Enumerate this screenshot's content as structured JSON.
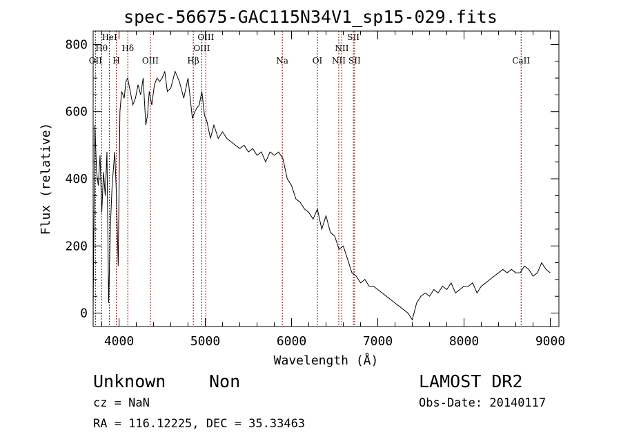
{
  "chart_data": {
    "type": "line",
    "title": "spec-56675-GAC115N34V1_sp15-029.fits",
    "xlabel": "Wavelength (Å)",
    "ylabel": "Flux (relative)",
    "xlim": [
      3700,
      9100
    ],
    "ylim": [
      -40,
      840
    ],
    "x_ticks": [
      4000,
      5000,
      6000,
      7000,
      8000,
      9000
    ],
    "y_ticks": [
      0,
      200,
      400,
      600,
      800
    ],
    "grid": false,
    "line_color": "#000000",
    "marker_color": "#8b0000",
    "spectrum": {
      "x": [
        3700,
        3720,
        3740,
        3760,
        3780,
        3800,
        3820,
        3840,
        3860,
        3880,
        3900,
        3920,
        3950,
        3970,
        3990,
        4010,
        4030,
        4060,
        4080,
        4100,
        4130,
        4160,
        4190,
        4220,
        4250,
        4280,
        4310,
        4330,
        4350,
        4380,
        4410,
        4440,
        4470,
        4500,
        4530,
        4560,
        4600,
        4650,
        4700,
        4750,
        4800,
        4850,
        4880,
        4900,
        4930,
        4960,
        4990,
        5020,
        5060,
        5100,
        5150,
        5200,
        5250,
        5300,
        5350,
        5400,
        5450,
        5500,
        5550,
        5600,
        5650,
        5700,
        5750,
        5800,
        5850,
        5900,
        5950,
        6000,
        6050,
        6100,
        6150,
        6200,
        6250,
        6300,
        6350,
        6400,
        6450,
        6500,
        6550,
        6600,
        6650,
        6700,
        6750,
        6800,
        6850,
        6900,
        6950,
        7000,
        7050,
        7100,
        7150,
        7200,
        7250,
        7300,
        7350,
        7400,
        7450,
        7500,
        7550,
        7600,
        7650,
        7700,
        7750,
        7800,
        7850,
        7900,
        7950,
        8000,
        8050,
        8100,
        8150,
        8200,
        8250,
        8300,
        8350,
        8400,
        8450,
        8500,
        8550,
        8600,
        8650,
        8700,
        8750,
        8800,
        8850,
        8900,
        8950,
        9000
      ],
      "y": [
        10,
        560,
        420,
        380,
        470,
        300,
        420,
        350,
        480,
        30,
        260,
        380,
        480,
        350,
        140,
        600,
        660,
        640,
        690,
        700,
        660,
        620,
        640,
        680,
        650,
        700,
        560,
        590,
        660,
        620,
        680,
        700,
        690,
        700,
        720,
        660,
        670,
        720,
        690,
        640,
        700,
        580,
        600,
        610,
        620,
        660,
        590,
        570,
        520,
        560,
        520,
        540,
        520,
        510,
        500,
        490,
        500,
        480,
        490,
        470,
        480,
        450,
        480,
        470,
        480,
        460,
        400,
        380,
        340,
        330,
        310,
        300,
        280,
        310,
        250,
        290,
        240,
        230,
        190,
        200,
        160,
        120,
        110,
        90,
        100,
        80,
        80,
        70,
        60,
        50,
        40,
        30,
        20,
        10,
        0,
        -20,
        30,
        50,
        60,
        50,
        70,
        60,
        80,
        70,
        90,
        60,
        70,
        80,
        80,
        90,
        60,
        80,
        90,
        100,
        110,
        120,
        130,
        120,
        130,
        120,
        120,
        140,
        130,
        110,
        120,
        150,
        130,
        120
      ]
    },
    "spectral_lines": [
      {
        "label": "OII",
        "wavelength": 3727
      },
      {
        "label": "Hθ",
        "wavelength": 3798
      },
      {
        "label": "HeI",
        "wavelength": 3889
      },
      {
        "label": "H",
        "wavelength": 3969
      },
      {
        "label": "Hδ",
        "wavelength": 4102
      },
      {
        "label": "OIII",
        "wavelength": 4363
      },
      {
        "label": "Hβ",
        "wavelength": 4861
      },
      {
        "label": "OIII",
        "wavelength": 4959
      },
      {
        "label": "OIII",
        "wavelength": 5007
      },
      {
        "label": "Na",
        "wavelength": 5893
      },
      {
        "label": "OI",
        "wavelength": 6300
      },
      {
        "label": "NII",
        "wavelength": 6548
      },
      {
        "label": "NII",
        "wavelength": 6584
      },
      {
        "label": "SII",
        "wavelength": 6717
      },
      {
        "label": "SII",
        "wavelength": 6731
      },
      {
        "label": "CaII",
        "wavelength": 8662
      }
    ]
  },
  "info": {
    "class": "Unknown",
    "subclass": "Non",
    "survey": "LAMOST DR2",
    "cz": "cz = NaN",
    "obs_date": "Obs-Date: 20140117",
    "coords": "RA = 116.12225, DEC =  35.33463"
  }
}
